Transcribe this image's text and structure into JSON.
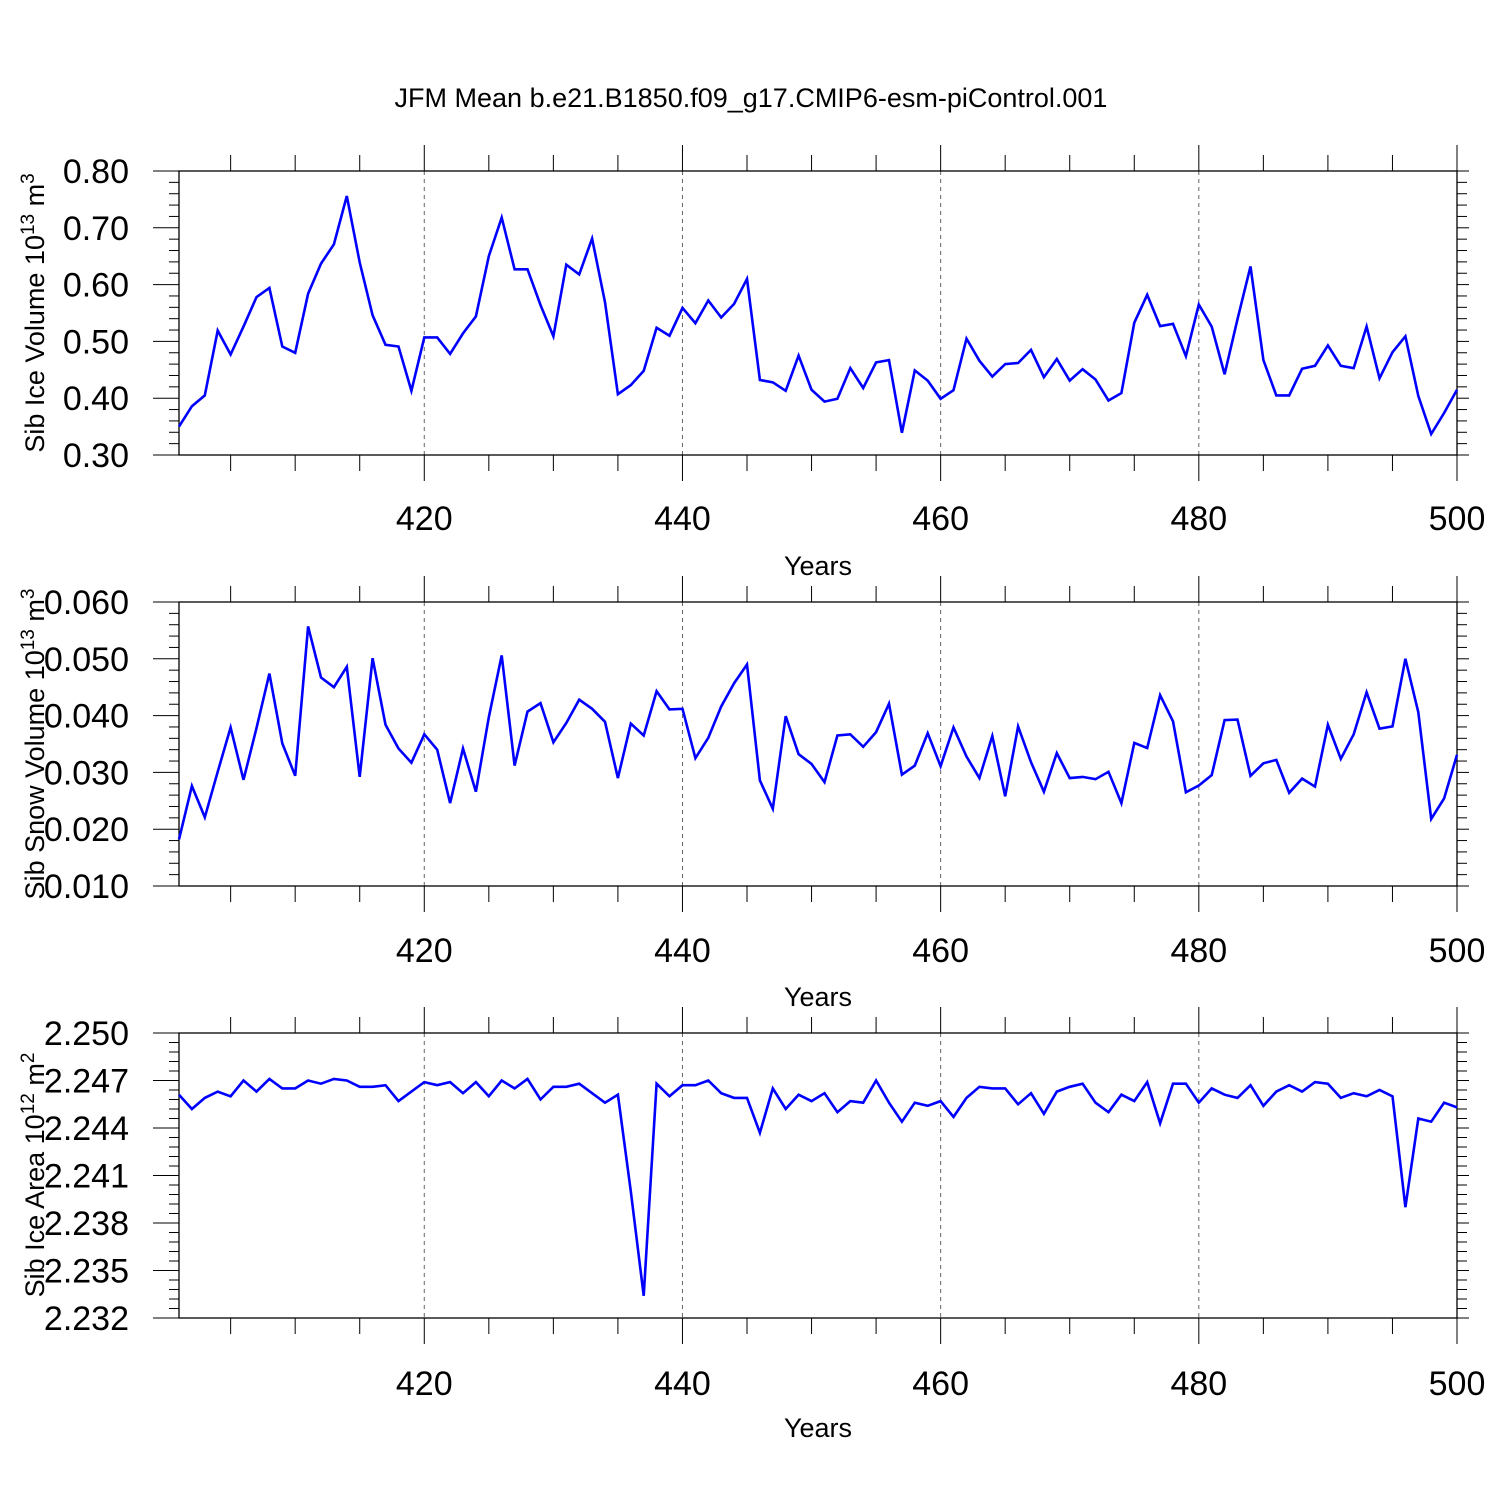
{
  "figure": {
    "title": "JFM Mean b.e21.B1850.f09_g17.CMIP6-esm-piControl.001",
    "line_color": "#0000ff"
  },
  "chart_data": [
    {
      "type": "line",
      "ylabel_main": "Sib Ice Volume 10",
      "ylabel_exp": "13",
      "ylabel_unit": " m",
      "ylabel_unit_exp": "3",
      "xlabel": "Years",
      "xlim": [
        401,
        500
      ],
      "ylim": [
        0.3,
        0.8
      ],
      "yticks": [
        "0.30",
        "0.40",
        "0.50",
        "0.60",
        "0.70",
        "0.80"
      ],
      "xticks": [
        "420",
        "440",
        "460",
        "480",
        "500"
      ],
      "grid": "dashed vertical at x tick labels",
      "series": [
        {
          "x": [
            401,
            402,
            403,
            404,
            405,
            406,
            407,
            408,
            409,
            410,
            411,
            412,
            413,
            414,
            415,
            416,
            417,
            418,
            419,
            420,
            421,
            422,
            423,
            424,
            425,
            426,
            427,
            428,
            429,
            430,
            431,
            432,
            433,
            434,
            435,
            436,
            437,
            438,
            439,
            440,
            441,
            442,
            443,
            444,
            445,
            446,
            447,
            448,
            449,
            450,
            451,
            452,
            453,
            454,
            455,
            456,
            457,
            458,
            459,
            460,
            461,
            462,
            463,
            464,
            465,
            466,
            467,
            468,
            469,
            470,
            471,
            472,
            473,
            474,
            475,
            476,
            477,
            478,
            479,
            480,
            481,
            482,
            483,
            484,
            485,
            486,
            487,
            488,
            489,
            490,
            491,
            492,
            493,
            494,
            495,
            496,
            497,
            498,
            499,
            500
          ],
          "values": [
            0.35,
            0.386,
            0.405,
            0.519,
            0.477,
            0.526,
            0.578,
            0.594,
            0.491,
            0.48,
            0.584,
            0.637,
            0.671,
            0.756,
            0.639,
            0.546,
            0.494,
            0.491,
            0.413,
            0.507,
            0.507,
            0.478,
            0.514,
            0.544,
            0.65,
            0.718,
            0.627,
            0.627,
            0.564,
            0.509,
            0.635,
            0.618,
            0.681,
            0.569,
            0.407,
            0.423,
            0.448,
            0.524,
            0.51,
            0.559,
            0.532,
            0.572,
            0.542,
            0.566,
            0.61,
            0.432,
            0.428,
            0.413,
            0.475,
            0.415,
            0.394,
            0.399,
            0.453,
            0.418,
            0.463,
            0.467,
            0.339,
            0.449,
            0.431,
            0.399,
            0.414,
            0.505,
            0.466,
            0.438,
            0.46,
            0.462,
            0.485,
            0.437,
            0.469,
            0.431,
            0.451,
            0.433,
            0.396,
            0.409,
            0.533,
            0.582,
            0.527,
            0.531,
            0.474,
            0.565,
            0.526,
            0.442,
            0.539,
            0.632,
            0.467,
            0.405,
            0.405,
            0.452,
            0.457,
            0.493,
            0.457,
            0.453,
            0.526,
            0.435,
            0.481,
            0.509,
            0.404,
            0.337,
            0.374,
            0.415
          ]
        }
      ]
    },
    {
      "type": "line",
      "ylabel_main": "Sib Snow Volume 10",
      "ylabel_exp": "13",
      "ylabel_unit": " m",
      "ylabel_unit_exp": "3",
      "xlabel": "Years",
      "xlim": [
        401,
        500
      ],
      "ylim": [
        0.01,
        0.06
      ],
      "yticks": [
        "0.010",
        "0.020",
        "0.030",
        "0.040",
        "0.050",
        "0.060"
      ],
      "xticks": [
        "420",
        "440",
        "460",
        "480",
        "500"
      ],
      "grid": "dashed vertical at x tick labels",
      "series": [
        {
          "x": [
            401,
            402,
            403,
            404,
            405,
            406,
            407,
            408,
            409,
            410,
            411,
            412,
            413,
            414,
            415,
            416,
            417,
            418,
            419,
            420,
            421,
            422,
            423,
            424,
            425,
            426,
            427,
            428,
            429,
            430,
            431,
            432,
            433,
            434,
            435,
            436,
            437,
            438,
            439,
            440,
            441,
            442,
            443,
            444,
            445,
            446,
            447,
            448,
            449,
            450,
            451,
            452,
            453,
            454,
            455,
            456,
            457,
            458,
            459,
            460,
            461,
            462,
            463,
            464,
            465,
            466,
            467,
            468,
            469,
            470,
            471,
            472,
            473,
            474,
            475,
            476,
            477,
            478,
            479,
            480,
            481,
            482,
            483,
            484,
            485,
            486,
            487,
            488,
            489,
            490,
            491,
            492,
            493,
            494,
            495,
            496,
            497,
            498,
            499,
            500
          ],
          "values": [
            0.0182,
            0.0276,
            0.0221,
            0.0301,
            0.0379,
            0.0287,
            0.0378,
            0.0474,
            0.0351,
            0.0294,
            0.0557,
            0.0467,
            0.045,
            0.0486,
            0.0292,
            0.0501,
            0.0384,
            0.0342,
            0.0317,
            0.0367,
            0.034,
            0.0246,
            0.0342,
            0.0266,
            0.0397,
            0.0506,
            0.0312,
            0.0407,
            0.0422,
            0.0353,
            0.0387,
            0.0428,
            0.0412,
            0.0389,
            0.029,
            0.0386,
            0.0365,
            0.0443,
            0.0411,
            0.0412,
            0.0325,
            0.0361,
            0.0416,
            0.0457,
            0.049,
            0.0286,
            0.0236,
            0.0399,
            0.0332,
            0.0315,
            0.0283,
            0.0365,
            0.0367,
            0.0345,
            0.0371,
            0.0421,
            0.0296,
            0.0312,
            0.0369,
            0.0311,
            0.0379,
            0.0328,
            0.029,
            0.0364,
            0.0258,
            0.0381,
            0.0318,
            0.0266,
            0.0334,
            0.029,
            0.0292,
            0.0288,
            0.0301,
            0.0246,
            0.0352,
            0.0343,
            0.0436,
            0.039,
            0.0265,
            0.0277,
            0.0295,
            0.0392,
            0.0393,
            0.0294,
            0.0316,
            0.0322,
            0.0264,
            0.0289,
            0.0275,
            0.0384,
            0.0324,
            0.0367,
            0.0441,
            0.0377,
            0.0381,
            0.05,
            0.0406,
            0.0218,
            0.0254,
            0.0331
          ]
        }
      ]
    },
    {
      "type": "line",
      "ylabel_main": "Sib Ice Area 10",
      "ylabel_exp": "12",
      "ylabel_unit": " m",
      "ylabel_unit_exp": "2",
      "xlabel": "Years",
      "xlim": [
        401,
        500
      ],
      "ylim": [
        2.232,
        2.25
      ],
      "yticks": [
        "2.232",
        "2.235",
        "2.238",
        "2.241",
        "2.244",
        "2.247",
        "2.250"
      ],
      "xticks": [
        "420",
        "440",
        "460",
        "480",
        "500"
      ],
      "grid": "dashed vertical at x tick labels",
      "series": [
        {
          "x": [
            401,
            402,
            403,
            404,
            405,
            406,
            407,
            408,
            409,
            410,
            411,
            412,
            413,
            414,
            415,
            416,
            417,
            418,
            419,
            420,
            421,
            422,
            423,
            424,
            425,
            426,
            427,
            428,
            429,
            430,
            431,
            432,
            433,
            434,
            435,
            436,
            437,
            438,
            439,
            440,
            441,
            442,
            443,
            444,
            445,
            446,
            447,
            448,
            449,
            450,
            451,
            452,
            453,
            454,
            455,
            456,
            457,
            458,
            459,
            460,
            461,
            462,
            463,
            464,
            465,
            466,
            467,
            468,
            469,
            470,
            471,
            472,
            473,
            474,
            475,
            476,
            477,
            478,
            479,
            480,
            481,
            482,
            483,
            484,
            485,
            486,
            487,
            488,
            489,
            490,
            491,
            492,
            493,
            494,
            495,
            496,
            497,
            498,
            499,
            500
          ],
          "values": [
            2.2461,
            2.2452,
            2.2459,
            2.2463,
            2.246,
            2.247,
            2.2463,
            2.2471,
            2.2465,
            2.2465,
            2.247,
            2.2468,
            2.2471,
            2.247,
            2.2466,
            2.2466,
            2.2467,
            2.2457,
            2.2463,
            2.2469,
            2.2467,
            2.2469,
            2.2462,
            2.2469,
            2.246,
            2.247,
            2.2465,
            2.2471,
            2.2458,
            2.2466,
            2.2466,
            2.2468,
            2.2462,
            2.2456,
            2.2461,
            2.24,
            2.2334,
            2.2468,
            2.246,
            2.2467,
            2.2467,
            2.247,
            2.2462,
            2.2459,
            2.2459,
            2.2437,
            2.2465,
            2.2452,
            2.2461,
            2.2457,
            2.2462,
            2.245,
            2.2457,
            2.2456,
            2.247,
            2.2456,
            2.2444,
            2.2456,
            2.2454,
            2.2457,
            2.2447,
            2.2459,
            2.2466,
            2.2465,
            2.2465,
            2.2455,
            2.2462,
            2.2449,
            2.2463,
            2.2466,
            2.2468,
            2.2456,
            2.245,
            2.2461,
            2.2457,
            2.2469,
            2.2443,
            2.2468,
            2.2468,
            2.2456,
            2.2465,
            2.2461,
            2.2459,
            2.2467,
            2.2454,
            2.2463,
            2.2467,
            2.2463,
            2.2469,
            2.2468,
            2.2459,
            2.2462,
            2.246,
            2.2464,
            2.246,
            2.239,
            2.2446,
            2.2444,
            2.2456,
            2.2453
          ]
        }
      ]
    }
  ]
}
